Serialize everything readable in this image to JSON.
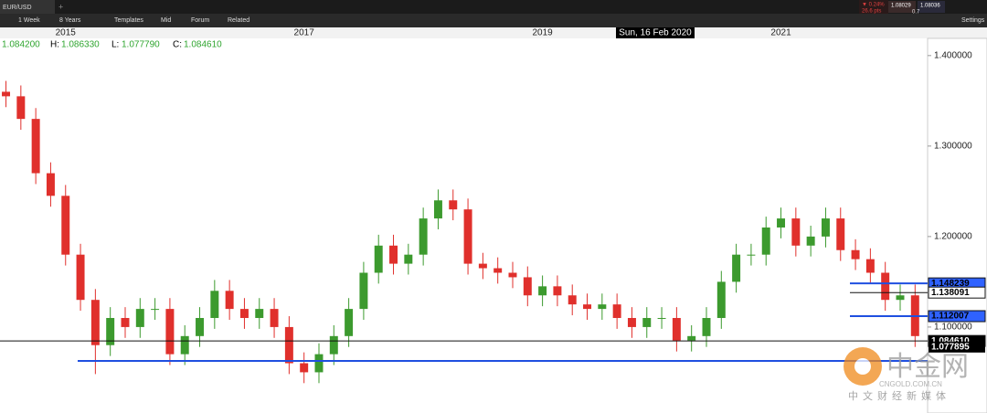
{
  "toolbar": {
    "symbol": "EUR/USD",
    "interval": "1 Week",
    "range": "8 Years",
    "buttons": [
      "Templates",
      "Mid",
      "Forum",
      "Related"
    ],
    "settings": "Settings"
  },
  "quote": {
    "change": "▼ 0.24%",
    "points": "26.6 pts",
    "bid": "1.08029",
    "ask": "1.08036",
    "spread": "0.7"
  },
  "crosshair_date": "Sun, 16 Feb 2020",
  "ohlc": {
    "open": "1.084200",
    "high_label": "H:",
    "high": "1.086330",
    "low_label": "L:",
    "low": "1.077790",
    "close_label": "C:",
    "close": "1.084610"
  },
  "watermark": {
    "brand": "中金网",
    "site": "CNGOLD.COM.CN",
    "slogan": "中文财经新媒体"
  },
  "chart_data": {
    "type": "candlestick",
    "up_color": "#3c9a2e",
    "down_color": "#e0302c",
    "x": [
      2014.5,
      2014.625,
      2014.75,
      2014.875,
      2015.0,
      2015.125,
      2015.25,
      2015.375,
      2015.5,
      2015.625,
      2015.75,
      2015.875,
      2016.0,
      2016.125,
      2016.25,
      2016.375,
      2016.5,
      2016.625,
      2016.75,
      2016.875,
      2017.0,
      2017.125,
      2017.25,
      2017.375,
      2017.5,
      2017.625,
      2017.75,
      2017.875,
      2018.0,
      2018.125,
      2018.25,
      2018.375,
      2018.5,
      2018.625,
      2018.75,
      2018.875,
      2019.0,
      2019.125,
      2019.25,
      2019.375,
      2019.5,
      2019.625,
      2019.75,
      2019.875,
      2020.0,
      2020.125,
      2020.25,
      2020.375,
      2020.5,
      2020.625,
      2020.75,
      2020.875,
      2021.0,
      2021.125,
      2021.25,
      2021.375,
      2021.5,
      2021.625,
      2021.75,
      2021.875,
      2022.0,
      2022.125
    ],
    "open": [
      1.36,
      1.355,
      1.33,
      1.27,
      1.245,
      1.18,
      1.13,
      1.08,
      1.11,
      1.1,
      1.12,
      1.12,
      1.07,
      1.09,
      1.11,
      1.14,
      1.12,
      1.11,
      1.12,
      1.1,
      1.06,
      1.05,
      1.07,
      1.09,
      1.12,
      1.16,
      1.19,
      1.17,
      1.18,
      1.22,
      1.24,
      1.23,
      1.17,
      1.165,
      1.16,
      1.155,
      1.135,
      1.145,
      1.135,
      1.125,
      1.12,
      1.125,
      1.11,
      1.1,
      1.11,
      1.11,
      1.085,
      1.09,
      1.11,
      1.15,
      1.18,
      1.18,
      1.21,
      1.22,
      1.19,
      1.2,
      1.22,
      1.185,
      1.175,
      1.16,
      1.13,
      1.135
    ],
    "high": [
      1.372,
      1.367,
      1.342,
      1.282,
      1.257,
      1.192,
      1.142,
      1.122,
      1.122,
      1.132,
      1.132,
      1.132,
      1.102,
      1.122,
      1.152,
      1.152,
      1.132,
      1.132,
      1.132,
      1.112,
      1.072,
      1.082,
      1.102,
      1.132,
      1.172,
      1.202,
      1.202,
      1.192,
      1.232,
      1.252,
      1.252,
      1.242,
      1.182,
      1.177,
      1.172,
      1.167,
      1.157,
      1.157,
      1.147,
      1.137,
      1.137,
      1.137,
      1.122,
      1.122,
      1.122,
      1.122,
      1.102,
      1.122,
      1.162,
      1.192,
      1.192,
      1.222,
      1.232,
      1.232,
      1.212,
      1.232,
      1.232,
      1.197,
      1.187,
      1.172,
      1.147,
      1.147
    ],
    "low": [
      1.343,
      1.318,
      1.258,
      1.233,
      1.168,
      1.118,
      1.048,
      1.068,
      1.088,
      1.088,
      1.108,
      1.058,
      1.058,
      1.078,
      1.098,
      1.108,
      1.098,
      1.098,
      1.088,
      1.048,
      1.038,
      1.038,
      1.058,
      1.078,
      1.108,
      1.148,
      1.158,
      1.158,
      1.168,
      1.208,
      1.218,
      1.158,
      1.153,
      1.148,
      1.143,
      1.123,
      1.123,
      1.123,
      1.113,
      1.108,
      1.108,
      1.098,
      1.088,
      1.088,
      1.098,
      1.073,
      1.073,
      1.078,
      1.098,
      1.138,
      1.168,
      1.168,
      1.198,
      1.178,
      1.178,
      1.188,
      1.173,
      1.163,
      1.148,
      1.118,
      1.118,
      1.078
    ],
    "close": [
      1.355,
      1.33,
      1.27,
      1.245,
      1.18,
      1.13,
      1.08,
      1.11,
      1.1,
      1.12,
      1.12,
      1.07,
      1.09,
      1.11,
      1.14,
      1.12,
      1.11,
      1.12,
      1.1,
      1.06,
      1.05,
      1.07,
      1.09,
      1.12,
      1.16,
      1.19,
      1.17,
      1.18,
      1.22,
      1.24,
      1.23,
      1.17,
      1.165,
      1.16,
      1.155,
      1.135,
      1.145,
      1.135,
      1.125,
      1.12,
      1.125,
      1.11,
      1.1,
      1.11,
      1.11,
      1.085,
      1.09,
      1.11,
      1.15,
      1.18,
      1.18,
      1.21,
      1.22,
      1.19,
      1.2,
      1.22,
      1.185,
      1.175,
      1.16,
      1.13,
      1.135,
      1.09
    ],
    "xlim": [
      2014.45,
      2022.23
    ],
    "xticks": [
      2015,
      2017,
      2019,
      2021
    ],
    "ylim": [
      1.005,
      1.419
    ],
    "yticks": [
      {
        "value": 1.1,
        "label": "1.100000"
      },
      {
        "value": 1.2,
        "label": "1.200000"
      },
      {
        "value": 1.3,
        "label": "1.300000"
      },
      {
        "value": 1.4,
        "label": "1.400000"
      }
    ],
    "hlines": [
      {
        "value": 1.148239,
        "color": "#1f4fe0"
      },
      {
        "value": 1.138091,
        "color": "#111111"
      },
      {
        "value": 1.112007,
        "color": "#1f4fe0"
      },
      {
        "value": {
          "value": 1.08461,
          "label": "1.084610"
        },
        "color": "#111111"
      },
      {
        "value": 1.0626,
        "color": "#1f4fe0"
      }
    ],
    "last_price": {
      "value": 1.077895,
      "label": "1.077895"
    }
  }
}
